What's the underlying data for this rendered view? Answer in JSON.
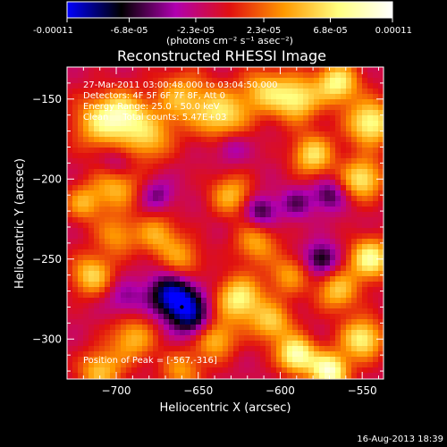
{
  "colorbar": {
    "tick_labels": [
      "-0.00011",
      "-6.8e-05",
      "-2.3e-05",
      "2.3e-05",
      "6.8e-05",
      "0.00011"
    ],
    "tick_values": [
      -0.00011,
      -6.8e-05,
      -2.3e-05,
      2.3e-05,
      6.8e-05,
      0.00011
    ],
    "range": [
      -0.00011,
      0.00011
    ],
    "units_label": "(photons cm⁻² s⁻¹ asec⁻²)",
    "colors": [
      "#0000ff",
      "#000000",
      "#b000b0",
      "#e01010",
      "#ff9900",
      "#ffff80",
      "#ffffff"
    ]
  },
  "chart_data": {
    "type": "heatmap",
    "title": "Reconstructed RHESSI Image",
    "xlabel": "Heliocentric X (arcsec)",
    "ylabel": "Heliocentric Y (arcsec)",
    "xlim": [
      -730,
      -537
    ],
    "ylim": [
      -325,
      -130
    ],
    "x_ticks": [
      -700,
      -650,
      -600,
      -550
    ],
    "x_tick_labels": [
      "−700",
      "−650",
      "−600",
      "−550"
    ],
    "y_ticks": [
      -150,
      -200,
      -250,
      -300
    ],
    "y_tick_labels": [
      "−150",
      "−200",
      "−250",
      "−300"
    ],
    "annotations": [
      "27-Mar-2011 03:00:48.000 to 03:04:50.000",
      "Detectors: 4F 5F 6F 7F 8F, Att 0",
      "Energy Range: 25.0 - 50.0 keV",
      "Clean     Total counts: 5.47E+03"
    ],
    "peak_label": "Position of Peak = [-567,-316]",
    "marker_point": [
      -660,
      -280
    ],
    "timestamp": "16-Aug-2013 18:39",
    "blobs": [
      {
        "x": -710,
        "y": -165,
        "v": 0.6,
        "s": 12
      },
      {
        "x": -695,
        "y": -160,
        "v": 0.65,
        "s": 10
      },
      {
        "x": -680,
        "y": -175,
        "v": 0.55,
        "s": 10
      },
      {
        "x": -660,
        "y": -150,
        "v": 0.55,
        "s": 12
      },
      {
        "x": -635,
        "y": -160,
        "v": 0.7,
        "s": 11
      },
      {
        "x": -610,
        "y": -145,
        "v": 0.55,
        "s": 10
      },
      {
        "x": -590,
        "y": -150,
        "v": 0.75,
        "s": 10
      },
      {
        "x": -565,
        "y": -140,
        "v": 0.8,
        "s": 9
      },
      {
        "x": -545,
        "y": -165,
        "v": 0.85,
        "s": 10
      },
      {
        "x": -580,
        "y": -185,
        "v": 0.7,
        "s": 9
      },
      {
        "x": -550,
        "y": -200,
        "v": 0.75,
        "s": 9
      },
      {
        "x": -700,
        "y": -205,
        "v": 0.55,
        "s": 10
      },
      {
        "x": -720,
        "y": -215,
        "v": 0.5,
        "s": 8
      },
      {
        "x": -700,
        "y": -235,
        "v": 0.45,
        "s": 9
      },
      {
        "x": -675,
        "y": -235,
        "v": 0.5,
        "s": 9
      },
      {
        "x": -660,
        "y": -250,
        "v": 0.45,
        "s": 9
      },
      {
        "x": -715,
        "y": -260,
        "v": 0.65,
        "s": 9
      },
      {
        "x": -630,
        "y": -210,
        "v": 0.55,
        "s": 9
      },
      {
        "x": -615,
        "y": -240,
        "v": 0.5,
        "s": 9
      },
      {
        "x": -595,
        "y": -260,
        "v": 0.45,
        "s": 9
      },
      {
        "x": -545,
        "y": -250,
        "v": 0.85,
        "s": 9
      },
      {
        "x": -565,
        "y": -270,
        "v": 0.6,
        "s": 9
      },
      {
        "x": -625,
        "y": -275,
        "v": 0.8,
        "s": 10
      },
      {
        "x": -605,
        "y": -290,
        "v": 0.6,
        "s": 9
      },
      {
        "x": -640,
        "y": -300,
        "v": 0.6,
        "s": 9
      },
      {
        "x": -690,
        "y": -300,
        "v": 0.55,
        "s": 10
      },
      {
        "x": -710,
        "y": -320,
        "v": 0.6,
        "s": 9
      },
      {
        "x": -660,
        "y": -320,
        "v": 0.45,
        "s": 9
      },
      {
        "x": -590,
        "y": -310,
        "v": 0.95,
        "s": 8
      },
      {
        "x": -570,
        "y": -320,
        "v": 1.0,
        "s": 8
      },
      {
        "x": -550,
        "y": -300,
        "v": 0.8,
        "s": 9
      },
      {
        "x": -660,
        "y": -278,
        "v": -0.75,
        "s": 10
      },
      {
        "x": -670,
        "y": -270,
        "v": -0.45,
        "s": 9
      },
      {
        "x": -652,
        "y": -290,
        "v": -0.4,
        "s": 8
      },
      {
        "x": -575,
        "y": -250,
        "v": -0.6,
        "s": 7
      },
      {
        "x": -612,
        "y": -220,
        "v": -0.5,
        "s": 7
      },
      {
        "x": -570,
        "y": -210,
        "v": -0.45,
        "s": 7
      },
      {
        "x": -675,
        "y": -210,
        "v": -0.35,
        "s": 7
      },
      {
        "x": -695,
        "y": -275,
        "v": -0.3,
        "s": 8
      },
      {
        "x": -700,
        "y": -190,
        "v": -0.3,
        "s": 7
      },
      {
        "x": -630,
        "y": -180,
        "v": -0.3,
        "s": 7
      },
      {
        "x": -590,
        "y": -215,
        "v": -0.35,
        "s": 7
      }
    ]
  }
}
